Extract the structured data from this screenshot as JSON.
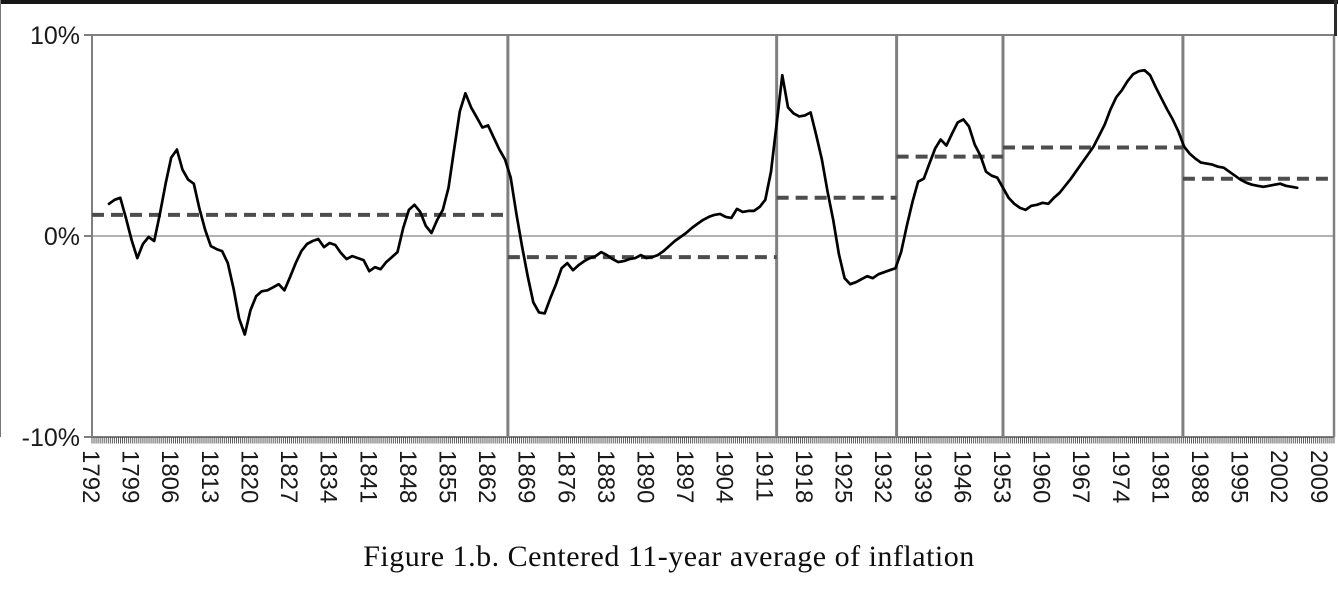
{
  "figure": {
    "caption": "Figure 1.b. Centered 11-year average of inflation"
  },
  "chart_data": {
    "type": "line",
    "title": "Figure 1.b. Centered 11-year average of inflation",
    "xlabel": "",
    "ylabel": "",
    "ylim": [
      -10,
      10
    ],
    "grid": "horizontal lines at -10%, 0%, 10% only",
    "legend": "none",
    "y_axis": {
      "min": -10,
      "max": 10,
      "labels": [
        {
          "text": "10%",
          "value": 10
        },
        {
          "text": "0%",
          "value": 0
        },
        {
          "text": "-10%",
          "value": -10
        }
      ]
    },
    "x_axis": {
      "start_year": 1792,
      "end_year": 2011.5,
      "label_step": 7,
      "tick_labels": [
        1792,
        1799,
        1806,
        1813,
        1820,
        1827,
        1834,
        1841,
        1848,
        1855,
        1862,
        1869,
        1876,
        1883,
        1890,
        1897,
        1904,
        1911,
        1918,
        1925,
        1932,
        1939,
        1946,
        1953,
        1960,
        1967,
        1974,
        1981,
        1988,
        1995,
        2002,
        2009
      ]
    },
    "eras": [
      {
        "start_year": 1792,
        "end_year": 1865.5,
        "mean_pct": 1.05
      },
      {
        "start_year": 1865.5,
        "end_year": 1913,
        "mean_pct": -1.05
      },
      {
        "start_year": 1913,
        "end_year": 1934.2,
        "mean_pct": 1.9
      },
      {
        "start_year": 1934.2,
        "end_year": 1953,
        "mean_pct": 3.95
      },
      {
        "start_year": 1953,
        "end_year": 1984.8,
        "mean_pct": 4.4
      },
      {
        "start_year": 1984.8,
        "end_year": 2011.5,
        "mean_pct": 2.85
      }
    ],
    "series": [
      {
        "name": "Centered 11-year average of inflation",
        "points": [
          [
            1795,
            1.6
          ],
          [
            1796,
            1.8
          ],
          [
            1797,
            1.9
          ],
          [
            1798,
            0.9
          ],
          [
            1799,
            -0.2
          ],
          [
            1800,
            -1.1
          ],
          [
            1801,
            -0.4
          ],
          [
            1802,
            -0.05
          ],
          [
            1803,
            -0.25
          ],
          [
            1804,
            1.1
          ],
          [
            1805,
            2.6
          ],
          [
            1806,
            3.9
          ],
          [
            1807,
            4.3
          ],
          [
            1808,
            3.3
          ],
          [
            1809,
            2.8
          ],
          [
            1810,
            2.6
          ],
          [
            1811,
            1.35
          ],
          [
            1812,
            0.3
          ],
          [
            1813,
            -0.5
          ],
          [
            1814,
            -0.65
          ],
          [
            1815,
            -0.75
          ],
          [
            1816,
            -1.35
          ],
          [
            1817,
            -2.6
          ],
          [
            1818,
            -4.1
          ],
          [
            1819,
            -4.9
          ],
          [
            1820,
            -3.7
          ],
          [
            1821,
            -3.0
          ],
          [
            1822,
            -2.75
          ],
          [
            1823,
            -2.7
          ],
          [
            1824,
            -2.55
          ],
          [
            1825,
            -2.4
          ],
          [
            1826,
            -2.7
          ],
          [
            1827,
            -2.05
          ],
          [
            1828,
            -1.35
          ],
          [
            1829,
            -0.75
          ],
          [
            1830,
            -0.4
          ],
          [
            1831,
            -0.25
          ],
          [
            1832,
            -0.15
          ],
          [
            1833,
            -0.55
          ],
          [
            1834,
            -0.35
          ],
          [
            1835,
            -0.45
          ],
          [
            1836,
            -0.85
          ],
          [
            1837,
            -1.15
          ],
          [
            1838,
            -1.0
          ],
          [
            1839,
            -1.1
          ],
          [
            1840,
            -1.2
          ],
          [
            1841,
            -1.75
          ],
          [
            1842,
            -1.55
          ],
          [
            1843,
            -1.65
          ],
          [
            1844,
            -1.3
          ],
          [
            1845,
            -1.05
          ],
          [
            1846,
            -0.8
          ],
          [
            1847,
            0.4
          ],
          [
            1848,
            1.3
          ],
          [
            1849,
            1.55
          ],
          [
            1850,
            1.2
          ],
          [
            1851,
            0.5
          ],
          [
            1852,
            0.15
          ],
          [
            1853,
            0.8
          ],
          [
            1854,
            1.3
          ],
          [
            1855,
            2.4
          ],
          [
            1856,
            4.3
          ],
          [
            1857,
            6.2
          ],
          [
            1858,
            7.1
          ],
          [
            1859,
            6.4
          ],
          [
            1860,
            5.9
          ],
          [
            1861,
            5.4
          ],
          [
            1862,
            5.5
          ],
          [
            1863,
            4.9
          ],
          [
            1864,
            4.3
          ],
          [
            1865,
            3.8
          ],
          [
            1866,
            2.9
          ],
          [
            1867,
            1.1
          ],
          [
            1868,
            -0.5
          ],
          [
            1869,
            -2.0
          ],
          [
            1870,
            -3.3
          ],
          [
            1871,
            -3.8
          ],
          [
            1872,
            -3.85
          ],
          [
            1873,
            -3.1
          ],
          [
            1874,
            -2.4
          ],
          [
            1875,
            -1.6
          ],
          [
            1876,
            -1.35
          ],
          [
            1877,
            -1.7
          ],
          [
            1878,
            -1.45
          ],
          [
            1879,
            -1.25
          ],
          [
            1880,
            -1.1
          ],
          [
            1881,
            -1.0
          ],
          [
            1882,
            -0.8
          ],
          [
            1883,
            -0.95
          ],
          [
            1884,
            -1.15
          ],
          [
            1885,
            -1.3
          ],
          [
            1886,
            -1.25
          ],
          [
            1887,
            -1.15
          ],
          [
            1888,
            -1.1
          ],
          [
            1889,
            -0.95
          ],
          [
            1890,
            -1.1
          ],
          [
            1891,
            -1.05
          ],
          [
            1892,
            -0.95
          ],
          [
            1893,
            -0.75
          ],
          [
            1894,
            -0.5
          ],
          [
            1895,
            -0.25
          ],
          [
            1896,
            -0.05
          ],
          [
            1897,
            0.15
          ],
          [
            1898,
            0.4
          ],
          [
            1899,
            0.6
          ],
          [
            1900,
            0.8
          ],
          [
            1901,
            0.95
          ],
          [
            1902,
            1.05
          ],
          [
            1903,
            1.1
          ],
          [
            1904,
            0.95
          ],
          [
            1905,
            0.9
          ],
          [
            1906,
            1.35
          ],
          [
            1907,
            1.2
          ],
          [
            1908,
            1.25
          ],
          [
            1909,
            1.25
          ],
          [
            1910,
            1.45
          ],
          [
            1911,
            1.8
          ],
          [
            1912,
            3.2
          ],
          [
            1913,
            5.6
          ],
          [
            1914,
            8.0
          ],
          [
            1915,
            6.4
          ],
          [
            1916,
            6.1
          ],
          [
            1917,
            5.95
          ],
          [
            1918,
            6.0
          ],
          [
            1919,
            6.15
          ],
          [
            1920,
            5.0
          ],
          [
            1921,
            3.8
          ],
          [
            1922,
            2.2
          ],
          [
            1923,
            0.8
          ],
          [
            1924,
            -0.9
          ],
          [
            1925,
            -2.1
          ],
          [
            1926,
            -2.4
          ],
          [
            1927,
            -2.3
          ],
          [
            1928,
            -2.15
          ],
          [
            1929,
            -2.0
          ],
          [
            1930,
            -2.1
          ],
          [
            1931,
            -1.9
          ],
          [
            1932,
            -1.8
          ],
          [
            1933,
            -1.7
          ],
          [
            1934,
            -1.6
          ],
          [
            1935,
            -0.8
          ],
          [
            1936,
            0.5
          ],
          [
            1937,
            1.7
          ],
          [
            1938,
            2.7
          ],
          [
            1939,
            2.85
          ],
          [
            1940,
            3.6
          ],
          [
            1941,
            4.35
          ],
          [
            1942,
            4.8
          ],
          [
            1943,
            4.5
          ],
          [
            1944,
            5.1
          ],
          [
            1945,
            5.65
          ],
          [
            1946,
            5.8
          ],
          [
            1947,
            5.45
          ],
          [
            1948,
            4.55
          ],
          [
            1949,
            4.0
          ],
          [
            1950,
            3.2
          ],
          [
            1951,
            3.0
          ],
          [
            1952,
            2.9
          ],
          [
            1953,
            2.4
          ],
          [
            1954,
            1.9
          ],
          [
            1955,
            1.6
          ],
          [
            1956,
            1.4
          ],
          [
            1957,
            1.3
          ],
          [
            1958,
            1.5
          ],
          [
            1959,
            1.55
          ],
          [
            1960,
            1.65
          ],
          [
            1961,
            1.6
          ],
          [
            1962,
            1.9
          ],
          [
            1963,
            2.15
          ],
          [
            1964,
            2.5
          ],
          [
            1965,
            2.85
          ],
          [
            1966,
            3.25
          ],
          [
            1967,
            3.65
          ],
          [
            1968,
            4.05
          ],
          [
            1969,
            4.45
          ],
          [
            1970,
            5.0
          ],
          [
            1971,
            5.55
          ],
          [
            1972,
            6.3
          ],
          [
            1973,
            6.9
          ],
          [
            1974,
            7.25
          ],
          [
            1975,
            7.7
          ],
          [
            1976,
            8.05
          ],
          [
            1977,
            8.2
          ],
          [
            1978,
            8.25
          ],
          [
            1979,
            8.0
          ],
          [
            1980,
            7.4
          ],
          [
            1981,
            6.85
          ],
          [
            1982,
            6.3
          ],
          [
            1983,
            5.8
          ],
          [
            1984,
            5.2
          ],
          [
            1985,
            4.45
          ],
          [
            1986,
            4.1
          ],
          [
            1987,
            3.85
          ],
          [
            1988,
            3.65
          ],
          [
            1989,
            3.6
          ],
          [
            1990,
            3.55
          ],
          [
            1991,
            3.45
          ],
          [
            1992,
            3.4
          ],
          [
            1993,
            3.2
          ],
          [
            1994,
            3.0
          ],
          [
            1995,
            2.8
          ],
          [
            1996,
            2.65
          ],
          [
            1997,
            2.55
          ],
          [
            1998,
            2.5
          ],
          [
            1999,
            2.45
          ],
          [
            2000,
            2.5
          ],
          [
            2001,
            2.55
          ],
          [
            2002,
            2.6
          ],
          [
            2003,
            2.5
          ],
          [
            2004,
            2.45
          ],
          [
            2005,
            2.4
          ]
        ]
      }
    ],
    "colors": {
      "line": "#000000",
      "era_mean_dash": "#4d4d4d",
      "divider": "#808080",
      "axis": "#808080",
      "zero_line": "#9a9a9a",
      "tick": "#4d4d4d",
      "label": "#1a1a1a"
    }
  }
}
